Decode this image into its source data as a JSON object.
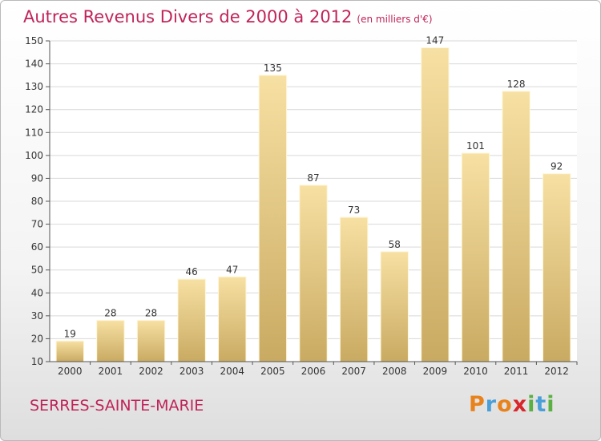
{
  "chart_data": {
    "type": "bar",
    "title": "Autres Revenus Divers de 2000 à 2012",
    "unit": "(en milliers d'€)",
    "categories": [
      "2000",
      "2001",
      "2002",
      "2003",
      "2004",
      "2005",
      "2006",
      "2007",
      "2008",
      "2009",
      "2010",
      "2011",
      "2012"
    ],
    "values": [
      19,
      28,
      28,
      46,
      47,
      135,
      87,
      73,
      58,
      147,
      101,
      128,
      92
    ],
    "ylim": [
      10,
      150
    ],
    "yticks": [
      10,
      20,
      30,
      40,
      50,
      60,
      70,
      80,
      90,
      100,
      110,
      120,
      130,
      140,
      150
    ],
    "grid": true,
    "bar_color": "#e8cf87"
  },
  "footer": {
    "city": "SERRES-SAINTE-MARIE",
    "logo_letters": [
      "P",
      "r",
      "o",
      "x",
      "i",
      "t",
      "i"
    ]
  }
}
